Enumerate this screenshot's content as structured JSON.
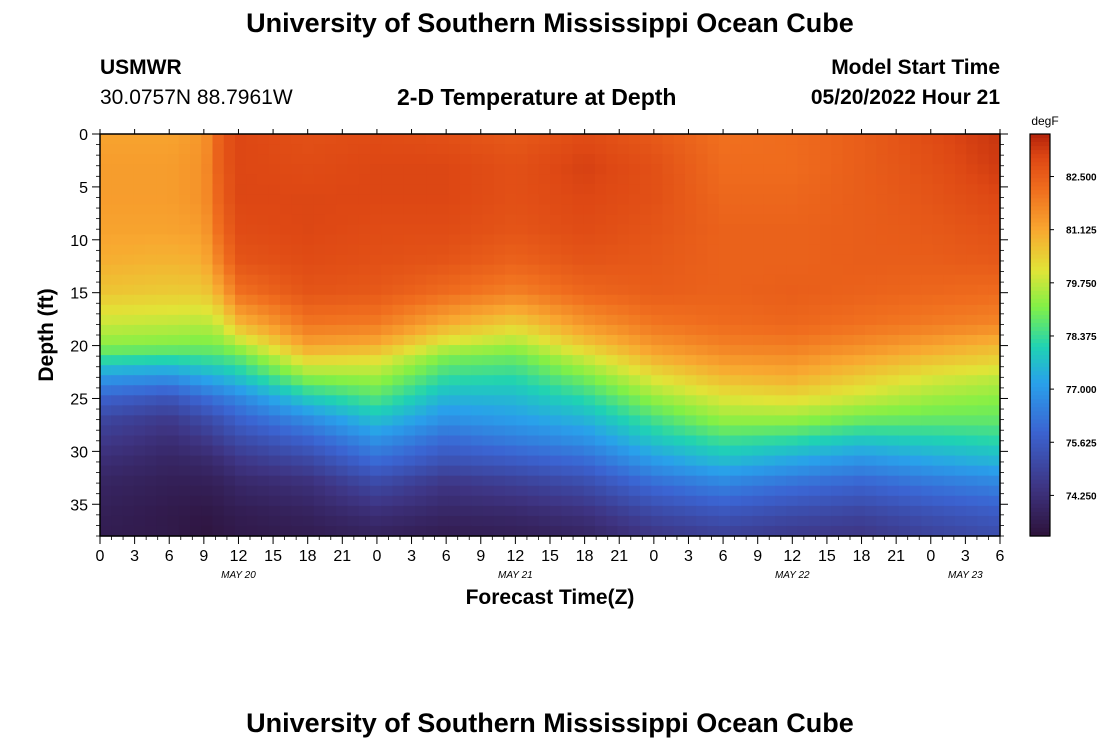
{
  "header": {
    "title": "University of Southern Mississippi Ocean Cube",
    "station": "USMWR",
    "coordinates": "30.0757N  88.7961W",
    "subtitle": "2-D Temperature at Depth",
    "start_label": "Model Start Time",
    "start_value": "05/20/2022 Hour 21"
  },
  "footer": {
    "title": "University of Southern Mississippi Ocean Cube"
  },
  "chart_data": {
    "type": "heatmap",
    "title": "2-D Temperature at Depth",
    "xlabel": "Forecast Time(Z)",
    "ylabel": "Depth (ft)",
    "x_ticks": [
      "0",
      "3",
      "6",
      "9",
      "12",
      "15",
      "18",
      "21",
      "0",
      "3",
      "6",
      "9",
      "12",
      "15",
      "18",
      "21",
      "0",
      "3",
      "6",
      "9",
      "12",
      "15",
      "18",
      "21",
      "0",
      "3",
      "6"
    ],
    "x_range_hours": [
      0,
      78
    ],
    "date_labels": [
      {
        "label": "MAY 20",
        "hour": 12
      },
      {
        "label": "MAY 21",
        "hour": 36
      },
      {
        "label": "MAY 22",
        "hour": 60
      },
      {
        "label": "MAY 23",
        "hour": 75
      }
    ],
    "y_ticks": [
      0,
      5,
      10,
      15,
      20,
      25,
      30,
      35
    ],
    "y_range_ft": [
      0,
      38
    ],
    "colorbar": {
      "unit": "degF",
      "ticks": [
        "82.500",
        "81.125",
        "79.750",
        "78.375",
        "77.000",
        "75.625",
        "74.250"
      ],
      "range": [
        73.2,
        83.6
      ]
    },
    "columns_hours": [
      0,
      6,
      9,
      10.5,
      12,
      18,
      24,
      30,
      36,
      42,
      48,
      54,
      60,
      66,
      72,
      78
    ],
    "rows_depth_ft": [
      0,
      3,
      6,
      9,
      12,
      15,
      18,
      20,
      21,
      23,
      25,
      27,
      29,
      31,
      33,
      36,
      38
    ],
    "temperature_degF": [
      [
        81.2,
        81.2,
        81.4,
        82.6,
        83.0,
        82.8,
        82.9,
        82.8,
        82.6,
        82.9,
        82.6,
        82.1,
        82.2,
        82.5,
        82.9,
        83.3
      ],
      [
        81.3,
        81.3,
        81.5,
        82.6,
        83.0,
        82.9,
        83.0,
        83.0,
        82.8,
        83.1,
        82.8,
        82.2,
        82.2,
        82.5,
        82.8,
        83.2
      ],
      [
        81.3,
        81.3,
        81.5,
        82.5,
        83.0,
        83.0,
        83.0,
        83.0,
        82.8,
        83.0,
        82.8,
        82.3,
        82.3,
        82.5,
        82.7,
        83.0
      ],
      [
        81.2,
        81.2,
        81.3,
        82.3,
        82.9,
        83.0,
        82.9,
        82.9,
        82.7,
        82.9,
        82.7,
        82.4,
        82.4,
        82.5,
        82.6,
        82.8
      ],
      [
        81.0,
        80.9,
        81.0,
        81.9,
        82.7,
        82.9,
        82.8,
        82.7,
        82.4,
        82.7,
        82.6,
        82.4,
        82.4,
        82.5,
        82.5,
        82.6
      ],
      [
        80.6,
        80.5,
        80.5,
        81.1,
        82.1,
        82.7,
        82.6,
        82.2,
        81.8,
        82.3,
        82.5,
        82.4,
        82.5,
        82.4,
        82.3,
        82.2
      ],
      [
        79.8,
        79.7,
        79.6,
        79.9,
        80.8,
        82.0,
        81.9,
        81.0,
        80.4,
        81.4,
        82.0,
        82.2,
        82.3,
        82.1,
        81.9,
        81.7
      ],
      [
        79.2,
        79.1,
        79.0,
        79.1,
        79.5,
        81.2,
        81.0,
        79.8,
        79.4,
        80.5,
        81.4,
        81.8,
        81.9,
        81.6,
        81.2,
        80.8
      ],
      [
        78.5,
        78.4,
        78.5,
        78.6,
        78.8,
        80.5,
        80.3,
        79.1,
        78.9,
        79.9,
        81.0,
        81.5,
        81.6,
        81.2,
        80.8,
        80.5
      ],
      [
        77.0,
        76.8,
        77.3,
        77.5,
        77.8,
        79.2,
        79.4,
        78.3,
        78.2,
        79.0,
        80.1,
        80.8,
        81.0,
        80.5,
        80.0,
        79.7
      ],
      [
        75.8,
        75.4,
        76.0,
        76.3,
        76.6,
        77.9,
        78.6,
        77.5,
        77.6,
        78.2,
        79.3,
        80.0,
        80.2,
        79.8,
        79.4,
        79.2
      ],
      [
        75.0,
        74.6,
        75.1,
        75.4,
        75.8,
        76.7,
        77.7,
        76.8,
        77.1,
        77.5,
        78.5,
        79.3,
        79.3,
        78.9,
        78.8,
        78.8
      ],
      [
        74.6,
        74.2,
        74.5,
        74.8,
        75.1,
        75.8,
        76.8,
        76.0,
        76.4,
        76.8,
        77.8,
        78.4,
        78.2,
        77.8,
        78.0,
        78.2
      ],
      [
        74.2,
        73.9,
        74.0,
        74.2,
        74.5,
        75.0,
        76.0,
        75.3,
        75.6,
        76.0,
        77.0,
        77.6,
        77.2,
        76.8,
        77.2,
        77.5
      ],
      [
        73.9,
        73.7,
        73.7,
        73.8,
        74.0,
        74.3,
        75.1,
        74.5,
        74.8,
        75.2,
        76.1,
        76.6,
        76.2,
        75.9,
        76.3,
        76.6
      ],
      [
        73.7,
        73.5,
        73.4,
        73.5,
        73.6,
        73.8,
        74.2,
        73.9,
        74.0,
        74.3,
        75.0,
        75.4,
        75.1,
        74.9,
        75.3,
        75.6
      ],
      [
        73.6,
        73.5,
        73.3,
        73.4,
        73.5,
        73.6,
        73.8,
        73.6,
        73.7,
        73.9,
        74.5,
        74.8,
        74.6,
        74.5,
        74.9,
        75.2
      ]
    ]
  }
}
